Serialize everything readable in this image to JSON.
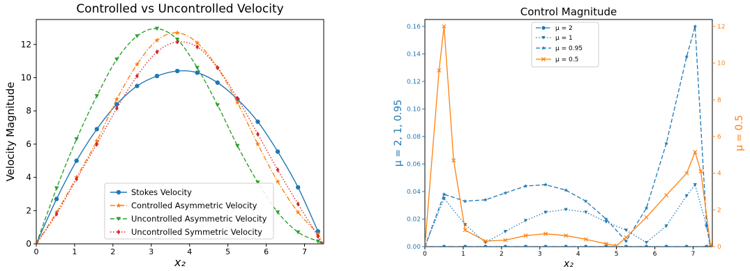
{
  "colors": {
    "blue": "#1f77b4",
    "orange": "#ff7f0e",
    "green": "#2ca02c",
    "red": "#d62728"
  },
  "chart_data": [
    {
      "type": "line",
      "title": "Controlled vs Uncontrolled Velocity",
      "xlabel": "x₂",
      "ylabel": "Velocity Magnitude",
      "xlim": [
        0,
        7.5
      ],
      "ylim": [
        0,
        13.5
      ],
      "xticks": [
        0,
        1,
        2,
        3,
        4,
        5,
        6,
        7
      ],
      "xticklabels": [
        "0",
        "1",
        "2",
        "3",
        "4",
        "5",
        "6",
        "7"
      ],
      "yticks": [
        0,
        2,
        4,
        6,
        8,
        10,
        12
      ],
      "yticklabels": [
        "0",
        "2",
        "4",
        "6",
        "8",
        "10",
        "12"
      ],
      "legend_position": "lower-center",
      "grid": false,
      "series": [
        {
          "name": "Stokes Velocity",
          "color": "#1f77b4",
          "linestyle": "solid",
          "marker": "circle",
          "x": [
            0,
            0.53,
            1.05,
            1.58,
            2.1,
            2.63,
            3.15,
            3.68,
            4.2,
            4.73,
            5.25,
            5.78,
            6.3,
            6.83,
            7.35
          ],
          "y": [
            0,
            2.7,
            5.0,
            6.9,
            8.4,
            9.5,
            10.1,
            10.4,
            10.3,
            9.7,
            8.7,
            7.35,
            5.55,
            3.4,
            0.75
          ]
        },
        {
          "name": "Controlled Asymmetric Velocity",
          "color": "#ff7f0e",
          "linestyle": "dashdot",
          "marker": "star",
          "x": [
            0,
            0.53,
            1.05,
            1.58,
            2.1,
            2.63,
            3.15,
            3.68,
            4.2,
            4.73,
            5.25,
            5.78,
            6.3,
            6.83,
            7.35,
            7.45
          ],
          "y": [
            0,
            1.9,
            4.0,
            6.2,
            8.7,
            10.8,
            12.25,
            12.7,
            12.1,
            10.6,
            8.5,
            6.0,
            3.75,
            1.9,
            0.6,
            0.0
          ]
        },
        {
          "name": "Uncontrolled Asymmetric Velocity",
          "color": "#2ca02c",
          "linestyle": "dashed",
          "marker": "triangle-down",
          "x": [
            0,
            0.53,
            1.05,
            1.58,
            2.1,
            2.63,
            3.15,
            3.68,
            4.2,
            4.73,
            5.25,
            5.78,
            6.3,
            6.83,
            7.35,
            7.45
          ],
          "y": [
            0,
            3.35,
            6.3,
            8.9,
            11.1,
            12.5,
            12.95,
            12.3,
            10.6,
            8.35,
            5.9,
            3.7,
            1.9,
            0.7,
            0.15,
            0.0
          ]
        },
        {
          "name": "Uncontrolled Symmetric Velocity",
          "color": "#d62728",
          "linestyle": "dotted",
          "marker": "diamond",
          "x": [
            0,
            0.53,
            1.05,
            1.58,
            2.1,
            2.63,
            3.15,
            3.68,
            4.2,
            4.73,
            5.25,
            5.78,
            6.3,
            6.83,
            7.35,
            7.45
          ],
          "y": [
            0,
            1.8,
            3.9,
            6.0,
            8.15,
            10.1,
            11.55,
            12.15,
            11.85,
            10.6,
            8.75,
            6.6,
            4.45,
            2.4,
            0.45,
            0.0
          ]
        }
      ]
    },
    {
      "type": "line",
      "title": "Control Magnitude",
      "xlabel": "x₂",
      "ylabel_left": "μ = 2, 1, 0.95",
      "ylabel_right": "μ = 0.5",
      "xlim": [
        0,
        7.5
      ],
      "ylim_left": [
        0,
        0.165
      ],
      "ylim_right": [
        0,
        12.375
      ],
      "xticks": [
        0,
        1,
        2,
        3,
        4,
        5,
        6,
        7
      ],
      "xticklabels": [
        "0",
        "1",
        "2",
        "3",
        "4",
        "5",
        "6",
        "7"
      ],
      "yticks_left": [
        0,
        0.02,
        0.04,
        0.06,
        0.08,
        0.1,
        0.12,
        0.14,
        0.16
      ],
      "yticklabels_left": [
        "0.00",
        "0.02",
        "0.04",
        "0.06",
        "0.08",
        "0.10",
        "0.12",
        "0.14",
        "0.16"
      ],
      "yticks_right": [
        0,
        2,
        4,
        6,
        8,
        10,
        12
      ],
      "yticklabels_right": [
        "0",
        "2",
        "4",
        "6",
        "8",
        "10",
        "12"
      ],
      "legend_position": "upper-center",
      "grid": false,
      "series": [
        {
          "name": "μ = 2",
          "axis": "left",
          "color": "#1f77b4",
          "linestyle": "dashdot",
          "marker": "circle",
          "x": [
            0,
            0.5,
            1.05,
            1.58,
            2.1,
            2.63,
            3.15,
            3.68,
            4.2,
            4.73,
            5.25,
            5.78,
            6.3,
            6.83,
            7.35,
            7.45
          ],
          "y": [
            0,
            0,
            0,
            0,
            0,
            0,
            0,
            0,
            0,
            0,
            0,
            0,
            0,
            0,
            0,
            0
          ]
        },
        {
          "name": "μ = 1",
          "axis": "left",
          "color": "#1f77b4",
          "linestyle": "dotted",
          "marker": "triangle-down",
          "x": [
            0,
            0.5,
            1.05,
            1.58,
            2.1,
            2.63,
            3.15,
            3.68,
            4.2,
            4.73,
            5.25,
            5.78,
            6.3,
            6.83,
            7.05,
            7.35,
            7.45
          ],
          "y": [
            0,
            0.035,
            0.016,
            0.003,
            0.011,
            0.019,
            0.025,
            0.027,
            0.025,
            0.018,
            0.012,
            0.003,
            0.015,
            0.037,
            0.045,
            0.015,
            0
          ]
        },
        {
          "name": "μ = 0.95",
          "axis": "left",
          "color": "#1f77b4",
          "linestyle": "dashed",
          "marker": "star",
          "x": [
            0,
            0.5,
            1.05,
            1.58,
            2.1,
            2.63,
            3.15,
            3.68,
            4.2,
            4.73,
            5.25,
            5.78,
            6.3,
            6.83,
            7.05,
            7.35,
            7.45
          ],
          "y": [
            0,
            0.038,
            0.033,
            0.034,
            0.039,
            0.044,
            0.045,
            0.041,
            0.033,
            0.02,
            0.004,
            0.028,
            0.075,
            0.138,
            0.16,
            0.015,
            0
          ]
        },
        {
          "name": "μ = 0.5",
          "axis": "right",
          "color": "#ff7f0e",
          "linestyle": "solid",
          "marker": "x",
          "x": [
            0,
            0.37,
            0.5,
            0.75,
            1.05,
            1.58,
            2.1,
            2.63,
            3.15,
            3.68,
            4.2,
            4.73,
            5.0,
            5.25,
            5.78,
            6.3,
            6.83,
            7.05,
            7.2,
            7.45
          ],
          "y": [
            0,
            9.6,
            12.0,
            4.7,
            0.9,
            0.3,
            0.35,
            0.6,
            0.7,
            0.6,
            0.4,
            0.15,
            0.05,
            0.5,
            1.6,
            2.8,
            4.0,
            5.15,
            4.1,
            0.1
          ]
        }
      ]
    }
  ]
}
